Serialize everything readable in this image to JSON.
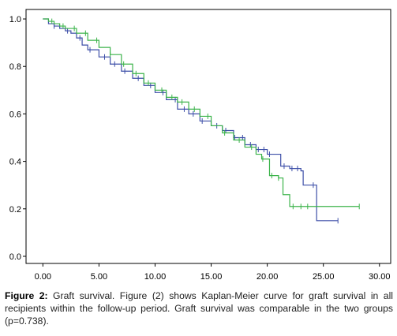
{
  "chart_data": {
    "type": "line",
    "title": "",
    "xlabel": "",
    "ylabel": "",
    "xlim": [
      -1.5,
      31
    ],
    "ylim": [
      -0.03,
      1.04
    ],
    "x_ticks": [
      "0.00",
      "5.00",
      "10.00",
      "15.00",
      "20.00",
      "25.00",
      "30.00"
    ],
    "x_tick_values": [
      0,
      5,
      10,
      15,
      20,
      25,
      30
    ],
    "y_ticks": [
      "0.0",
      "0.2",
      "0.4",
      "0.6",
      "0.8",
      "1.0"
    ],
    "y_tick_values": [
      0,
      0.2,
      0.4,
      0.6,
      0.8,
      1.0
    ],
    "grid": false,
    "legend": "none",
    "series": [
      {
        "color": "#3d4fa8",
        "step": true,
        "x": [
          0,
          0.5,
          1,
          1.5,
          2,
          2.5,
          3,
          3.5,
          4,
          5,
          6,
          7,
          8,
          9,
          10,
          11,
          12,
          13,
          14,
          15,
          16,
          17,
          18,
          19,
          20,
          21.2,
          22,
          23,
          23.2,
          24.4,
          26.3
        ],
        "y": [
          1.0,
          0.98,
          0.97,
          0.96,
          0.95,
          0.94,
          0.92,
          0.89,
          0.87,
          0.84,
          0.81,
          0.78,
          0.75,
          0.72,
          0.69,
          0.66,
          0.62,
          0.6,
          0.57,
          0.55,
          0.53,
          0.5,
          0.47,
          0.45,
          0.43,
          0.38,
          0.37,
          0.36,
          0.3,
          0.15,
          0.15
        ],
        "censor_x": [
          1,
          2.2,
          3.3,
          4.2,
          5.5,
          6.4,
          7.3,
          8.5,
          9.6,
          10.7,
          11.8,
          12.6,
          13.4,
          14.2,
          15.5,
          16.3,
          17.1,
          17.8,
          18.5,
          19.2,
          19.7,
          20.2,
          21.5,
          22.2,
          22.7,
          24.1,
          26.3
        ]
      },
      {
        "color": "#3bb34a",
        "step": true,
        "x": [
          0,
          0.5,
          1,
          1.5,
          2,
          3,
          4,
          5,
          6,
          7,
          8,
          9,
          10,
          11,
          12,
          13,
          14,
          15,
          16,
          17,
          18,
          19,
          19.5,
          20.2,
          21,
          21.4,
          22,
          24.5,
          28.2
        ],
        "y": [
          1.0,
          0.99,
          0.98,
          0.97,
          0.96,
          0.94,
          0.91,
          0.88,
          0.85,
          0.81,
          0.77,
          0.73,
          0.7,
          0.67,
          0.65,
          0.62,
          0.59,
          0.55,
          0.52,
          0.49,
          0.46,
          0.43,
          0.41,
          0.34,
          0.33,
          0.26,
          0.21,
          0.21,
          0.21
        ],
        "censor_x": [
          0.8,
          1.8,
          2.8,
          3.8,
          4.8,
          6,
          7.2,
          8.3,
          9.4,
          10.6,
          11.5,
          12.4,
          13.5,
          14.7,
          16.2,
          17.5,
          18.6,
          19.6,
          20.4,
          21,
          22.3,
          23,
          23.6,
          28.2
        ]
      }
    ]
  },
  "caption": {
    "label": "Figure 2:",
    "text": " Graft survival. Figure (2) shows Kaplan-Meier curve for graft survival in all recipients within the follow-up period. Graft survival was comparable in the two groups (p=0.738)."
  }
}
